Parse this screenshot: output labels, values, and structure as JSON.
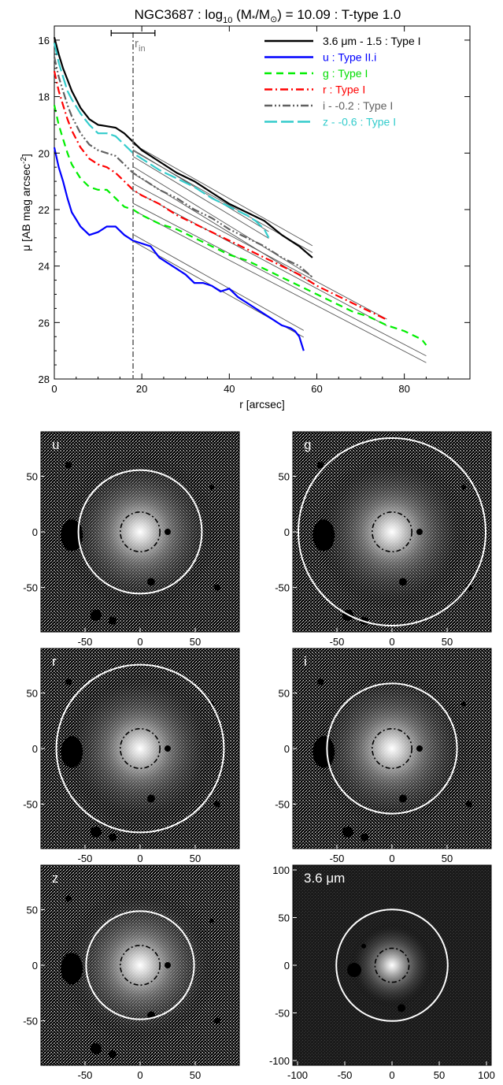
{
  "chart_data": [
    {
      "type": "line",
      "title_main": "NGC3687 : log",
      "title_sub10": "10",
      "title_mid": " (M",
      "title_star": "*",
      "title_slash": "/M",
      "title_sun": "⊙",
      "title_tail": ") = 10.09 : T-type 1.0",
      "xlabel": "r [arcsec]",
      "ylabel_main": "μ [AB mag arcsec",
      "ylabel_exp": "-2",
      "ylabel_close": "]",
      "xlim": [
        0,
        95
      ],
      "ylim": [
        28,
        15.5
      ],
      "xticks": [
        "0",
        "20",
        "40",
        "60",
        "80"
      ],
      "yticks": [
        "16",
        "18",
        "20",
        "22",
        "24",
        "26",
        "28"
      ],
      "xtick_values": [
        0,
        20,
        40,
        60,
        80
      ],
      "ytick_values": [
        16,
        18,
        20,
        22,
        24,
        26,
        28
      ],
      "r_in_label": "r",
      "r_in_sub": "in",
      "r_in": 18,
      "r_in_err": [
        13,
        23
      ],
      "legend_position": "top-right",
      "series": [
        {
          "name": "3.6 μm - 1.5 : Type I",
          "color": "#000000",
          "dash": "",
          "x": [
            0,
            1,
            2,
            3,
            4,
            5,
            6,
            8,
            10,
            12,
            14,
            16,
            18,
            20,
            24,
            28,
            32,
            36,
            40,
            44,
            48,
            52,
            56,
            59
          ],
          "y": [
            15.9,
            16.5,
            17.0,
            17.4,
            17.8,
            18.1,
            18.4,
            18.8,
            19.0,
            19.05,
            19.1,
            19.3,
            19.6,
            19.9,
            20.3,
            20.7,
            21.0,
            21.4,
            21.8,
            22.1,
            22.4,
            22.9,
            23.3,
            23.7
          ],
          "fit": [
            [
              18,
              19.8
            ],
            [
              59,
              23.4
            ]
          ]
        },
        {
          "name": "u : Type II.i",
          "color": "#0000ff",
          "dash": "",
          "x": [
            0,
            1,
            2,
            3,
            4,
            6,
            8,
            10,
            12,
            14,
            16,
            18,
            20,
            22,
            24,
            26,
            28,
            30,
            32,
            34,
            36,
            38,
            40,
            42,
            44,
            46,
            48,
            50,
            52,
            54,
            55,
            56,
            57
          ],
          "y": [
            19.8,
            20.5,
            21.0,
            21.6,
            22.1,
            22.6,
            22.9,
            22.8,
            22.6,
            22.6,
            22.9,
            23.1,
            23.2,
            23.3,
            23.7,
            23.9,
            24.1,
            24.3,
            24.6,
            24.6,
            24.7,
            24.9,
            24.8,
            25.1,
            25.3,
            25.5,
            25.7,
            25.9,
            26.1,
            26.2,
            26.3,
            26.5,
            27.0
          ],
          "fit": [
            [
              18,
              23.0
            ],
            [
              57,
              26.4
            ]
          ]
        },
        {
          "name": "g : Type I",
          "color": "#00ee00",
          "dash": "9,6",
          "x": [
            0,
            1,
            2,
            3,
            4,
            6,
            8,
            10,
            12,
            14,
            16,
            18,
            20,
            24,
            28,
            32,
            36,
            40,
            44,
            48,
            52,
            56,
            60,
            64,
            68,
            72,
            76,
            80,
            84,
            85
          ],
          "y": [
            18.3,
            19.0,
            19.5,
            20.0,
            20.4,
            20.9,
            21.2,
            21.3,
            21.3,
            21.6,
            21.9,
            22.0,
            22.2,
            22.5,
            22.7,
            23.0,
            23.3,
            23.6,
            23.8,
            24.1,
            24.4,
            24.7,
            25.0,
            25.3,
            25.6,
            25.8,
            26.1,
            26.3,
            26.6,
            26.8
          ],
          "fit": [
            [
              18,
              21.9
            ],
            [
              85,
              27.3
            ]
          ]
        },
        {
          "name": "r : Type I",
          "color": "#ff0000",
          "dash": "10,4,2,4",
          "x": [
            0,
            1,
            2,
            3,
            4,
            6,
            8,
            10,
            12,
            14,
            16,
            18,
            20,
            24,
            28,
            32,
            36,
            40,
            44,
            48,
            52,
            56,
            60,
            64,
            68,
            72,
            76
          ],
          "y": [
            17.1,
            17.8,
            18.3,
            18.8,
            19.2,
            19.8,
            20.2,
            20.4,
            20.5,
            20.7,
            21.0,
            21.3,
            21.5,
            21.8,
            22.2,
            22.5,
            22.8,
            23.1,
            23.4,
            23.7,
            24.0,
            24.3,
            24.7,
            25.0,
            25.3,
            25.6,
            25.9
          ],
          "fit": [
            [
              18,
              21.2
            ],
            [
              76,
              26.0
            ]
          ]
        },
        {
          "name": "i - -0.2 : Type I",
          "color": "#606060",
          "dash": "10,3,2,3,2,3",
          "x": [
            0,
            1,
            2,
            3,
            4,
            6,
            8,
            10,
            12,
            14,
            16,
            18,
            20,
            24,
            28,
            32,
            36,
            40,
            44,
            48,
            52,
            56,
            59
          ],
          "y": [
            16.6,
            17.3,
            17.8,
            18.3,
            18.7,
            19.3,
            19.7,
            19.9,
            20.0,
            20.1,
            20.4,
            20.7,
            20.9,
            21.3,
            21.6,
            22.0,
            22.3,
            22.7,
            23.0,
            23.3,
            23.7,
            24.0,
            24.4
          ],
          "fit": [
            [
              18,
              20.6
            ],
            [
              59,
              24.5
            ]
          ]
        },
        {
          "name": "z - -0.6 : Type I",
          "color": "#33cccc",
          "dash": "16,5",
          "x": [
            0,
            1,
            2,
            3,
            4,
            6,
            8,
            10,
            12,
            14,
            16,
            18,
            20,
            24,
            28,
            32,
            36,
            40,
            44,
            46,
            48,
            49
          ],
          "y": [
            16.1,
            16.8,
            17.3,
            17.8,
            18.1,
            18.6,
            19.0,
            19.3,
            19.3,
            19.4,
            19.7,
            20.0,
            20.2,
            20.6,
            20.9,
            21.2,
            21.6,
            21.9,
            22.2,
            22.4,
            22.7,
            23.0
          ],
          "fit": [
            [
              18,
              20.0
            ],
            [
              49,
              22.9
            ]
          ]
        }
      ]
    },
    {
      "type": "image",
      "panels": [
        {
          "label": "u",
          "outer_radius": 56,
          "inner_radius": 18,
          "xlim": [
            -90,
            90
          ],
          "ylim": [
            -90,
            90
          ],
          "xticks": [
            "-50",
            "0",
            "50"
          ],
          "yticks": [
            "50",
            "0",
            "-50"
          ],
          "noise": "speckle"
        },
        {
          "label": "g",
          "outer_radius": 85,
          "inner_radius": 18,
          "xlim": [
            -90,
            90
          ],
          "ylim": [
            -90,
            90
          ],
          "xticks": [
            "-50",
            "0",
            "50"
          ],
          "yticks": [
            "50",
            "0",
            "-50"
          ],
          "noise": "speckle"
        },
        {
          "label": "r",
          "outer_radius": 76,
          "inner_radius": 18,
          "xlim": [
            -90,
            90
          ],
          "ylim": [
            -90,
            90
          ],
          "xticks": [
            "-50",
            "0",
            "50"
          ],
          "yticks": [
            "50",
            "0",
            "-50"
          ],
          "noise": "speckle"
        },
        {
          "label": "i",
          "outer_radius": 59,
          "inner_radius": 18,
          "xlim": [
            -90,
            90
          ],
          "ylim": [
            -90,
            90
          ],
          "xticks": [
            "-50",
            "0",
            "50"
          ],
          "yticks": [
            "50",
            "0",
            "-50"
          ],
          "noise": "speckle"
        },
        {
          "label": "z",
          "outer_radius": 49,
          "inner_radius": 18,
          "xlim": [
            -90,
            90
          ],
          "ylim": [
            -90,
            90
          ],
          "xticks": [
            "-50",
            "0",
            "50"
          ],
          "yticks": [
            "50",
            "0",
            "-50"
          ],
          "noise": "speckle"
        },
        {
          "label": "3.6 μm",
          "outer_radius": 59,
          "inner_radius": 18,
          "xlim": [
            -105,
            105
          ],
          "ylim": [
            -105,
            105
          ],
          "xticks": [
            "-100",
            "-50",
            "0",
            "50",
            "100"
          ],
          "yticks": [
            "100",
            "50",
            "0",
            "-50",
            "-100"
          ],
          "noise": "dark"
        }
      ]
    }
  ]
}
